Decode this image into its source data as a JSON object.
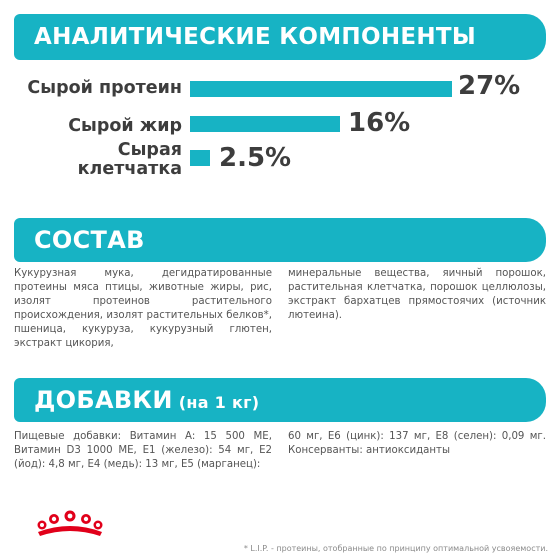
{
  "analytics": {
    "title": "АНАЛИТИЧЕСКИЕ КОМПОНЕНТЫ",
    "bars": [
      {
        "label": "Сырой протеин",
        "value": "27%",
        "percent": 27
      },
      {
        "label": "Сырой жир",
        "value": "16%",
        "percent": 16
      },
      {
        "label_line1": "Сырая",
        "label_line2": "клетчатка",
        "value": "2.5%",
        "percent": 2.5
      }
    ]
  },
  "composition": {
    "title": "СОСТАВ",
    "text_left": "Кукурузная мука, дегидратированные протеины мяса птицы, животные жиры, рис, изолят протеинов растительного происхождения, изолят растительных белков*, пшеница, кукуруза, кукурузный глютен, экстракт цикория,",
    "text_right": "минеральные вещества, яичный порошок, растительная клетчатка, порошок целлюлозы, экстракт бархатцев прямостоячих (источник лютеина)."
  },
  "additives": {
    "title": "ДОБАВКИ",
    "subtitle": "(на 1 кг)",
    "text_left": "Пищевые добавки: Витамин A: 15 500 МЕ, Витамин D3 1000 МЕ, E1 (железо): 54 мг, E2 (йод): 4,8 мг, E4 (медь): 13 мг, E5 (марганец):",
    "text_right": "60 мг, E6 (цинк): 137 мг, E8 (селен): 0,09 мг. Консерванты: антиоксиданты"
  },
  "footnote": "* L.I.P. - протеины, отобранные по принципу оптимальной усвояемости.",
  "colors": {
    "accent": "#17b3c4",
    "logo_red": "#e1001a"
  }
}
